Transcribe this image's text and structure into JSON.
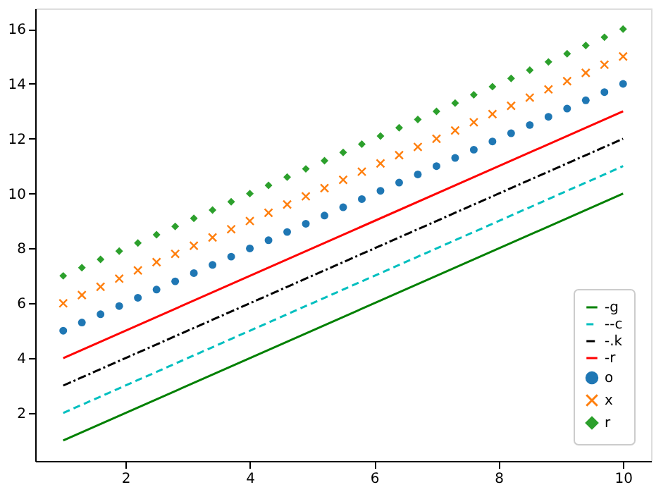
{
  "chart_data": {
    "type": "line",
    "xlim": [
      0.55,
      10.45
    ],
    "ylim": [
      0.25,
      16.75
    ],
    "xticks": [
      2,
      4,
      6,
      8,
      10
    ],
    "yticks": [
      2,
      4,
      6,
      8,
      10,
      12,
      14,
      16
    ],
    "grid": false,
    "legend": "bottom right",
    "series": [
      {
        "name": "-g",
        "color": "#008000",
        "line_style": "solid",
        "x": [
          1,
          10
        ],
        "values": [
          1,
          10
        ]
      },
      {
        "name": "--c",
        "color": "#00bfbf",
        "line_style": "dashed",
        "x": [
          1,
          10
        ],
        "values": [
          2,
          11
        ]
      },
      {
        "name": "-.k",
        "color": "#000000",
        "line_style": "dashdot",
        "x": [
          1,
          10
        ],
        "values": [
          3,
          12
        ]
      },
      {
        "name": "-r",
        "color": "#ff0000",
        "line_style": "solid",
        "x": [
          1,
          10
        ],
        "values": [
          4,
          13
        ]
      },
      {
        "name": "o",
        "type": "scatter",
        "color": "#1f77b4",
        "marker": "circle",
        "x": [
          1,
          1.3,
          1.6,
          1.9,
          2.2,
          2.5,
          2.8,
          3.1,
          3.4,
          3.7,
          4,
          4.3,
          4.6,
          4.9,
          5.2,
          5.5,
          5.8,
          6.1,
          6.4,
          6.7,
          7,
          7.3,
          7.6,
          7.9,
          8.2,
          8.5,
          8.8,
          9.1,
          9.4,
          9.7,
          10
        ],
        "values": [
          5,
          5.3,
          5.6,
          5.9,
          6.2,
          6.5,
          6.8,
          7.1,
          7.4,
          7.7,
          8,
          8.3,
          8.6,
          8.9,
          9.2,
          9.5,
          9.8,
          10.1,
          10.4,
          10.7,
          11,
          11.3,
          11.6,
          11.9,
          12.2,
          12.5,
          12.8,
          13.1,
          13.4,
          13.7,
          14
        ]
      },
      {
        "name": "x",
        "type": "scatter",
        "color": "#ff7f0e",
        "marker": "cross",
        "x": [
          1,
          1.3,
          1.6,
          1.9,
          2.2,
          2.5,
          2.8,
          3.1,
          3.4,
          3.7,
          4,
          4.3,
          4.6,
          4.9,
          5.2,
          5.5,
          5.8,
          6.1,
          6.4,
          6.7,
          7,
          7.3,
          7.6,
          7.9,
          8.2,
          8.5,
          8.8,
          9.1,
          9.4,
          9.7,
          10
        ],
        "values": [
          6,
          6.3,
          6.6,
          6.9,
          7.2,
          7.5,
          7.8,
          8.1,
          8.4,
          8.7,
          9,
          9.3,
          9.6,
          9.9,
          10.2,
          10.5,
          10.8,
          11.1,
          11.4,
          11.7,
          12,
          12.3,
          12.6,
          12.9,
          13.2,
          13.5,
          13.8,
          14.1,
          14.4,
          14.7,
          15
        ]
      },
      {
        "name": "r",
        "type": "scatter",
        "color": "#2ca02c",
        "marker": "diamond",
        "x": [
          1,
          1.3,
          1.6,
          1.9,
          2.2,
          2.5,
          2.8,
          3.1,
          3.4,
          3.7,
          4,
          4.3,
          4.6,
          4.9,
          5.2,
          5.5,
          5.8,
          6.1,
          6.4,
          6.7,
          7,
          7.3,
          7.6,
          7.9,
          8.2,
          8.5,
          8.8,
          9.1,
          9.4,
          9.7,
          10
        ],
        "values": [
          7,
          7.3,
          7.6,
          7.9,
          8.2,
          8.5,
          8.8,
          9.1,
          9.4,
          9.7,
          10,
          10.3,
          10.6,
          10.9,
          11.2,
          11.5,
          11.8,
          12.1,
          12.4,
          12.7,
          13,
          13.3,
          13.6,
          13.9,
          14.2,
          14.5,
          14.8,
          15.1,
          15.4,
          15.7,
          16
        ]
      }
    ]
  }
}
